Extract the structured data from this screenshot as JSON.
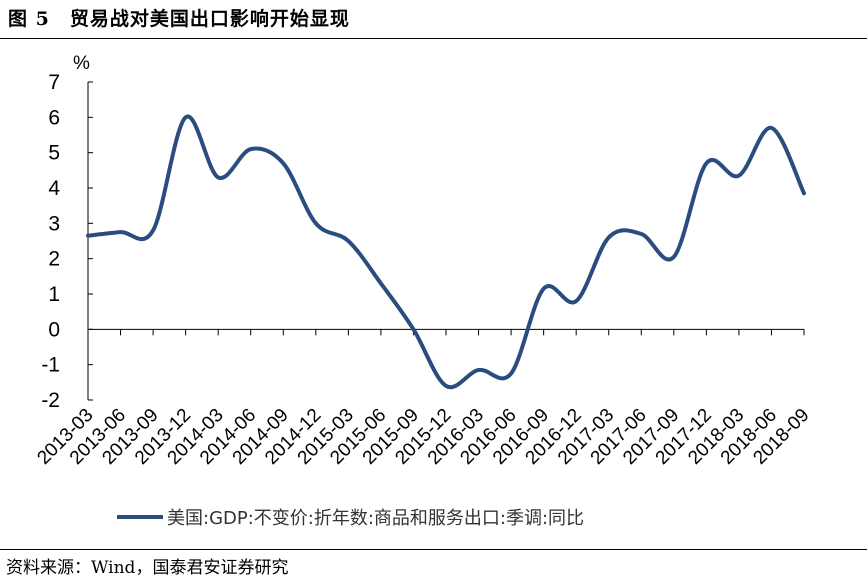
{
  "figure": {
    "title": "图 5　贸易战对美国出口影响开始显现",
    "source": "资料来源：Wind，国泰君安证券研究"
  },
  "chart_data": {
    "type": "line",
    "unit": "%",
    "ylim": [
      -2,
      7
    ],
    "yticks": [
      -2,
      -1,
      0,
      1,
      2,
      3,
      4,
      5,
      6,
      7
    ],
    "grid": false,
    "legend_position": "bottom",
    "categories": [
      "2013-03",
      "2013-06",
      "2013-09",
      "2013-12",
      "2014-03",
      "2014-06",
      "2014-09",
      "2014-12",
      "2015-03",
      "2015-06",
      "2015-09",
      "2015-12",
      "2016-03",
      "2016-06",
      "2016-09",
      "2016-12",
      "2017-03",
      "2017-06",
      "2017-09",
      "2017-12",
      "2018-03",
      "2018-06",
      "2018-09"
    ],
    "series": [
      {
        "name": "美国:GDP:不变价:折年数:商品和服务出口:季调:同比",
        "color": "#2b4c7e",
        "values": [
          2.65,
          2.75,
          2.8,
          6.0,
          4.3,
          5.1,
          4.7,
          3.0,
          2.5,
          1.3,
          0.0,
          -1.6,
          -1.15,
          -1.25,
          1.15,
          0.8,
          2.6,
          2.7,
          2.05,
          4.7,
          4.35,
          5.7,
          3.85
        ]
      }
    ]
  }
}
